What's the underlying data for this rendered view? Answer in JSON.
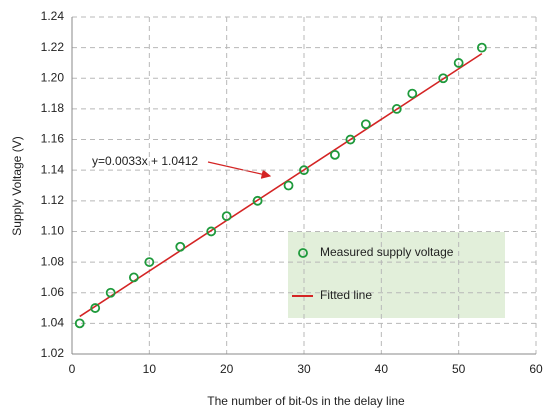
{
  "chart_data": {
    "type": "scatter",
    "xlabel": "The number of bit-0s in the delay line",
    "ylabel": "Supply Voltage (V)",
    "annotation": "y=0.0033x + 1.0412",
    "xlim": [
      0,
      60
    ],
    "xticks": [
      0,
      10,
      20,
      30,
      40,
      50,
      60
    ],
    "ylim": [
      1.02,
      1.24
    ],
    "yticks": [
      1.02,
      1.04,
      1.06,
      1.08,
      {
        "value": 1.1,
        "label": "1.10"
      },
      1.12,
      1.14,
      1.16,
      1.18,
      {
        "value": 1.2,
        "label": "1.20"
      },
      1.22,
      1.24
    ],
    "grid": true,
    "legend": "lower right",
    "series": [
      {
        "name": "Measured supply voltage",
        "color": "#1f9a3c",
        "x": [
          1,
          3,
          5,
          8,
          10,
          14,
          18,
          20,
          24,
          28,
          30,
          34,
          36,
          38,
          42,
          44,
          48,
          50,
          53
        ],
        "values": [
          1.04,
          1.05,
          1.06,
          1.07,
          1.08,
          1.09,
          1.1,
          1.11,
          1.12,
          1.13,
          1.14,
          1.15,
          1.16,
          1.17,
          1.18,
          1.19,
          1.2,
          1.21,
          1.22
        ]
      },
      {
        "name": "Fitted line",
        "color": "#d42424",
        "x": [
          1,
          53
        ],
        "values": [
          1.0445,
          1.2161
        ]
      }
    ]
  }
}
